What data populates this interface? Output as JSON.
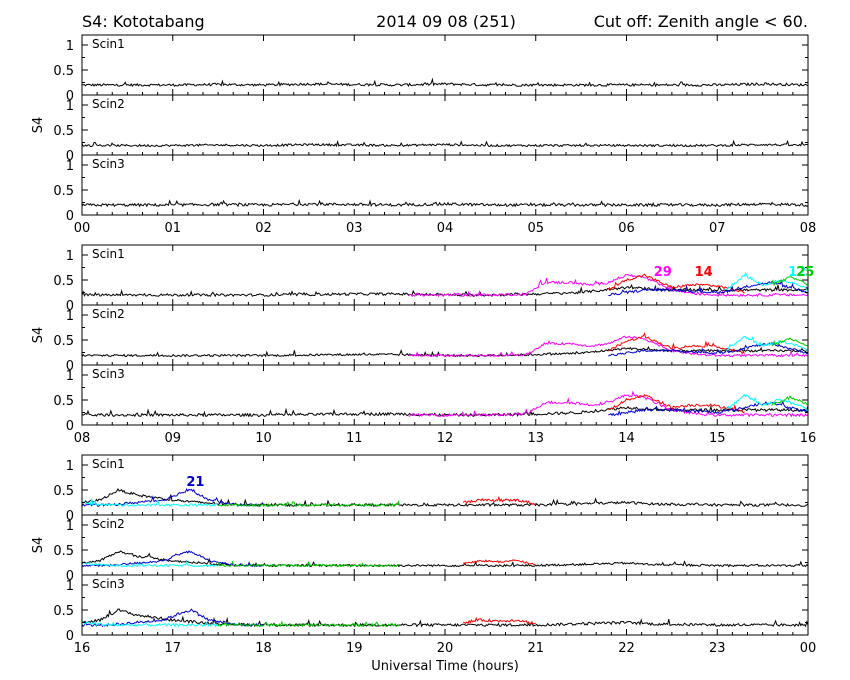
{
  "header": {
    "station": "S4: Kototabang",
    "date": "2014 09 08 (251)",
    "cutoff": "Cut off: Zenith angle < 60."
  },
  "x_title": "Universal Time (hours)",
  "colors": {
    "axis": "#000000",
    "c1": "#ff00ff",
    "c2": "#ff0000",
    "c3": "#00ffff",
    "c4": "#00cc00",
    "c5": "#0000cc",
    "base": "#000000"
  },
  "chart_data": [
    {
      "type": "line",
      "title": "",
      "xlabel": "",
      "ylabel": "S4",
      "xlim": [
        0,
        8
      ],
      "ylim": [
        0,
        1.2
      ],
      "x_ticks": [
        "00",
        "01",
        "02",
        "03",
        "04",
        "05",
        "06",
        "07",
        "08"
      ],
      "y_ticks": [
        "0",
        "0.5",
        "1"
      ],
      "panels": [
        "Scin1",
        "Scin2",
        "Scin3"
      ],
      "series": [
        {
          "color": "base",
          "x": [
            0,
            0.5,
            1,
            1.5,
            2,
            2.5,
            3,
            3.5,
            4,
            4.5,
            5,
            5.5,
            6,
            6.5,
            7,
            7.5,
            8
          ],
          "y": [
            0.2,
            0.2,
            0.2,
            0.21,
            0.2,
            0.22,
            0.21,
            0.2,
            0.22,
            0.2,
            0.2,
            0.2,
            0.2,
            0.2,
            0.2,
            0.22,
            0.2
          ]
        }
      ],
      "annotations": []
    },
    {
      "type": "line",
      "title": "",
      "xlabel": "",
      "ylabel": "S4",
      "xlim": [
        8,
        16
      ],
      "ylim": [
        0,
        1.2
      ],
      "x_ticks": [
        "08",
        "09",
        "10",
        "11",
        "12",
        "13",
        "14",
        "15",
        "16"
      ],
      "y_ticks": [
        "0",
        "0.5",
        "1"
      ],
      "panels": [
        "Scin1",
        "Scin2",
        "Scin3"
      ],
      "series": [
        {
          "color": "base",
          "x": [
            8,
            9,
            10,
            11,
            11.5,
            12,
            12.5,
            13,
            13.5,
            14,
            14.5,
            15,
            15.5,
            16
          ],
          "y": [
            0.2,
            0.2,
            0.2,
            0.22,
            0.22,
            0.2,
            0.2,
            0.22,
            0.25,
            0.35,
            0.3,
            0.3,
            0.3,
            0.3
          ]
        },
        {
          "color": "c1",
          "x": [
            11.6,
            12,
            12.5,
            12.9,
            13.1,
            13.4,
            13.6,
            13.8,
            14,
            14.2,
            14.5,
            14.8,
            15,
            15.3,
            15.6,
            16
          ],
          "y": [
            0.2,
            0.2,
            0.2,
            0.22,
            0.45,
            0.45,
            0.4,
            0.45,
            0.6,
            0.55,
            0.3,
            0.22,
            0.2,
            0.2,
            0.2,
            0.2
          ]
        },
        {
          "color": "c2",
          "x": [
            13.8,
            14,
            14.2,
            14.5,
            14.7,
            14.9,
            15.1,
            15.3
          ],
          "y": [
            0.3,
            0.5,
            0.6,
            0.35,
            0.4,
            0.4,
            0.35,
            0.25
          ]
        },
        {
          "color": "c5",
          "x": [
            13.8,
            14.2,
            14.5,
            15,
            15.2,
            15.4,
            15.6,
            15.8,
            16
          ],
          "y": [
            0.2,
            0.3,
            0.3,
            0.25,
            0.3,
            0.4,
            0.45,
            0.35,
            0.25
          ]
        },
        {
          "color": "c3",
          "x": [
            15.1,
            15.3,
            15.5,
            15.7,
            15.9,
            16
          ],
          "y": [
            0.3,
            0.6,
            0.4,
            0.5,
            0.4,
            0.3
          ]
        },
        {
          "color": "c4",
          "x": [
            15.6,
            15.8,
            15.9,
            16
          ],
          "y": [
            0.4,
            0.55,
            0.5,
            0.4
          ]
        }
      ],
      "annotations": [
        {
          "text": "29",
          "x": 14.4,
          "color": "c1"
        },
        {
          "text": "14",
          "x": 14.85,
          "color": "c2"
        },
        {
          "text": "12",
          "x": 15.88,
          "color": "c3"
        },
        {
          "text": "25",
          "x": 15.97,
          "color": "c4"
        }
      ]
    },
    {
      "type": "line",
      "title": "",
      "xlabel": "Universal Time (hours)",
      "ylabel": "S4",
      "xlim": [
        16,
        24
      ],
      "ylim": [
        0,
        1.2
      ],
      "x_ticks": [
        "16",
        "17",
        "18",
        "19",
        "20",
        "21",
        "22",
        "23",
        "00"
      ],
      "y_ticks": [
        "0",
        "0.5",
        "1"
      ],
      "panels": [
        "Scin1",
        "Scin2",
        "Scin3"
      ],
      "series": [
        {
          "color": "base",
          "x": [
            16,
            16.2,
            16.4,
            16.6,
            16.8,
            17,
            17.3,
            17.6,
            18,
            19,
            20,
            21,
            22,
            22.3,
            23,
            24
          ],
          "y": [
            0.25,
            0.3,
            0.5,
            0.4,
            0.35,
            0.3,
            0.25,
            0.22,
            0.2,
            0.2,
            0.2,
            0.2,
            0.25,
            0.22,
            0.2,
            0.2
          ]
        },
        {
          "color": "c5",
          "x": [
            16,
            16.3,
            16.6,
            16.9,
            17.1,
            17.2,
            17.4,
            17.7,
            18
          ],
          "y": [
            0.2,
            0.2,
            0.25,
            0.3,
            0.45,
            0.5,
            0.3,
            0.2,
            0.2
          ]
        },
        {
          "color": "c3",
          "x": [
            16,
            16.3,
            16.6,
            17,
            17.5
          ],
          "y": [
            0.25,
            0.2,
            0.2,
            0.2,
            0.2
          ]
        },
        {
          "color": "c4",
          "x": [
            17.5,
            18,
            18.5,
            19.5
          ],
          "y": [
            0.2,
            0.2,
            0.2,
            0.2
          ]
        },
        {
          "color": "c2",
          "x": [
            20.2,
            20.4,
            20.6,
            20.8,
            21
          ],
          "y": [
            0.25,
            0.3,
            0.28,
            0.3,
            0.22
          ]
        }
      ],
      "annotations": [
        {
          "text": "21",
          "x": 17.25,
          "color": "c5"
        }
      ]
    }
  ]
}
